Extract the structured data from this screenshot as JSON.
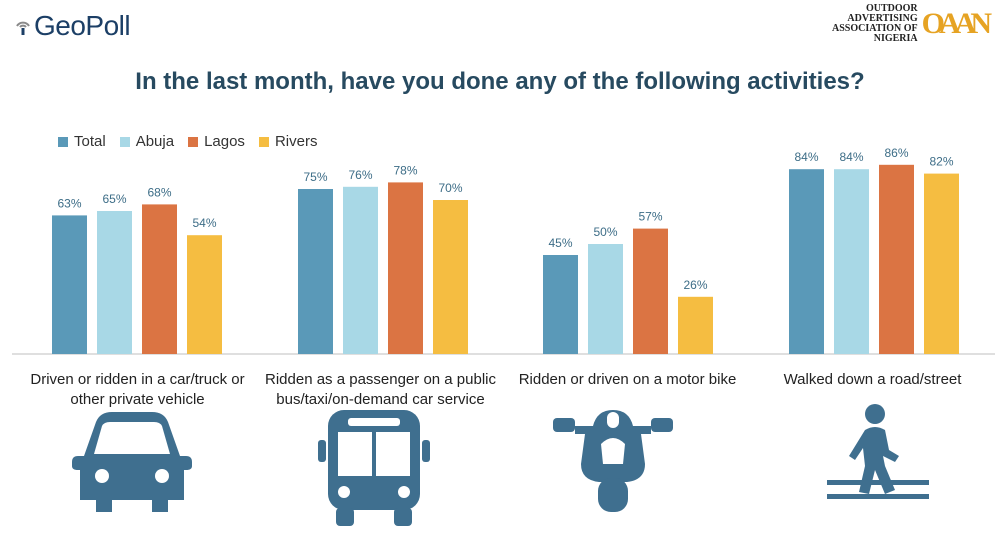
{
  "header": {
    "left_logo_text": "GeoPoll",
    "right_logo_org": "OUTDOOR ADVERTISING ASSOCIATION OF NIGERIA",
    "right_logo_mark": "OAAN"
  },
  "colors": {
    "Total": "#5a99b8",
    "Abuja": "#a8d8e6",
    "Lagos": "#db7443",
    "Rivers": "#f5bd41",
    "title": "#274a60",
    "icon": "#3f6f8f",
    "value_label": "#3d6d87"
  },
  "icons": [
    "car-icon",
    "bus-icon",
    "motorbike-icon",
    "pedestrian-icon"
  ],
  "chart_data": {
    "type": "bar",
    "title": "In the last month, have you done any of the following activities?",
    "categories": [
      "Driven or ridden in a car/truck or other private vehicle",
      "Ridden as a passenger on a public bus/taxi/on-demand car service",
      "Ridden or driven on a motor bike",
      "Walked down a road/street"
    ],
    "series": [
      {
        "name": "Total",
        "values": [
          63,
          75,
          45,
          84
        ]
      },
      {
        "name": "Abuja",
        "values": [
          65,
          76,
          50,
          84
        ]
      },
      {
        "name": "Lagos",
        "values": [
          68,
          78,
          57,
          86
        ]
      },
      {
        "name": "Rivers",
        "values": [
          54,
          70,
          26,
          82
        ]
      }
    ],
    "value_suffix": "%",
    "ylim": [
      0,
      100
    ],
    "xlabel": "",
    "ylabel": "",
    "grid": false,
    "legend_position": "top-left"
  }
}
